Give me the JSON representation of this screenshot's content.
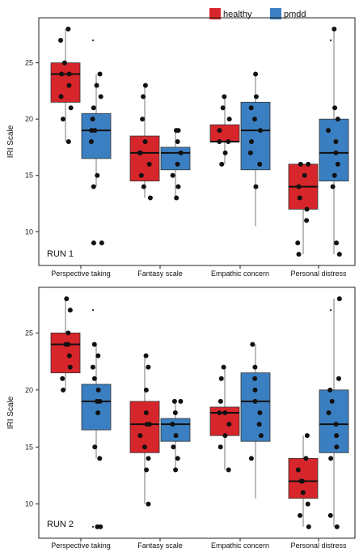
{
  "legend": {
    "items": [
      {
        "label": "healthy",
        "color": "#d7262b"
      },
      {
        "label": "pmdd",
        "color": "#3a7fc1"
      }
    ]
  },
  "chart_data": [
    {
      "type": "box",
      "panel_label": "RUN 1",
      "ylabel": "IRI Scale",
      "ylim": [
        7,
        29
      ],
      "yticks": [
        10,
        15,
        20,
        25
      ],
      "categories": [
        "Perspective taking",
        "Fantasy scale",
        "Empathic concern",
        "Personal distress"
      ],
      "series": [
        {
          "name": "healthy",
          "color": "#d7262b",
          "boxes": [
            {
              "q1": 21.5,
              "median": 24,
              "q3": 25,
              "whisker_low": 18,
              "whisker_high": 28,
              "outliers": [],
              "points": [
                28,
                27,
                25,
                24,
                24,
                23,
                22,
                21,
                20,
                18
              ]
            },
            {
              "q1": 14.5,
              "median": 17,
              "q3": 18.5,
              "whisker_low": 13,
              "whisker_high": 23,
              "outliers": [],
              "points": [
                23,
                22,
                20,
                18,
                17,
                17,
                16,
                15,
                14,
                13
              ]
            },
            {
              "q1": 18,
              "median": 18,
              "q3": 19.5,
              "whisker_low": 16,
              "whisker_high": 22,
              "outliers": [],
              "points": [
                22,
                21,
                20,
                19,
                18,
                18,
                17,
                16
              ]
            },
            {
              "q1": 12,
              "median": 14,
              "q3": 16,
              "whisker_low": 8,
              "whisker_high": 16,
              "outliers": [],
              "points": [
                16,
                16,
                15,
                14,
                13,
                12,
                11,
                9,
                8
              ]
            }
          ]
        },
        {
          "name": "pmdd",
          "color": "#3a7fc1",
          "boxes": [
            {
              "q1": 16.5,
              "median": 19,
              "q3": 20.5,
              "whisker_low": 14,
              "whisker_high": 24,
              "outliers": [
                27,
                9
              ],
              "points": [
                24,
                23,
                22,
                21,
                20,
                19,
                19,
                18,
                15,
                14,
                9,
                9
              ]
            },
            {
              "q1": 15.5,
              "median": 17,
              "q3": 17.5,
              "whisker_low": 13,
              "whisker_high": 19,
              "outliers": [],
              "points": [
                19,
                19,
                18,
                17,
                16,
                15,
                14,
                13
              ]
            },
            {
              "q1": 15.5,
              "median": 19,
              "q3": 21.5,
              "whisker_low": 10.5,
              "whisker_high": 24,
              "outliers": [],
              "points": [
                24,
                22,
                21,
                20,
                19,
                18,
                17,
                16,
                14
              ]
            },
            {
              "q1": 14.5,
              "median": 17,
              "q3": 20,
              "whisker_low": 8,
              "whisker_high": 28,
              "outliers": [
                27
              ],
              "points": [
                28,
                21,
                20,
                19,
                18,
                17,
                16,
                15,
                14,
                9,
                8
              ]
            }
          ]
        }
      ]
    },
    {
      "type": "box",
      "panel_label": "RUN 2",
      "ylabel": "IRI Scale",
      "ylim": [
        7,
        29
      ],
      "yticks": [
        10,
        15,
        20,
        25
      ],
      "categories": [
        "Perspective taking",
        "Fantasy scale",
        "Empathic concern",
        "Personal distress"
      ],
      "series": [
        {
          "name": "healthy",
          "color": "#d7262b",
          "boxes": [
            {
              "q1": 21.5,
              "median": 24,
              "q3": 25,
              "whisker_low": 20,
              "whisker_high": 28,
              "outliers": [],
              "points": [
                28,
                27,
                25,
                24,
                24,
                23,
                22,
                21,
                20
              ]
            },
            {
              "q1": 14.5,
              "median": 17,
              "q3": 19,
              "whisker_low": 10,
              "whisker_high": 23,
              "outliers": [],
              "points": [
                23,
                22,
                20,
                18,
                17,
                17,
                16,
                15,
                14,
                13,
                10
              ]
            },
            {
              "q1": 16,
              "median": 18,
              "q3": 18.5,
              "whisker_low": 13,
              "whisker_high": 22,
              "outliers": [],
              "points": [
                22,
                21,
                19,
                18,
                18,
                17,
                16,
                15,
                13
              ]
            },
            {
              "q1": 10.5,
              "median": 12,
              "q3": 14,
              "whisker_low": 8,
              "whisker_high": 16,
              "outliers": [],
              "points": [
                16,
                14,
                13,
                12,
                12,
                11,
                10,
                9,
                8
              ]
            }
          ]
        },
        {
          "name": "pmdd",
          "color": "#3a7fc1",
          "boxes": [
            {
              "q1": 16.5,
              "median": 19,
              "q3": 20.5,
              "whisker_low": 14,
              "whisker_high": 24,
              "outliers": [
                27,
                8
              ],
              "points": [
                24,
                23,
                22,
                21,
                20,
                19,
                19,
                18,
                15,
                14,
                8,
                8
              ]
            },
            {
              "q1": 15.5,
              "median": 17,
              "q3": 17.5,
              "whisker_low": 13,
              "whisker_high": 19,
              "outliers": [],
              "points": [
                19,
                19,
                18,
                17,
                16,
                15,
                14,
                13
              ]
            },
            {
              "q1": 15.5,
              "median": 19,
              "q3": 21.5,
              "whisker_low": 10.5,
              "whisker_high": 24,
              "outliers": [],
              "points": [
                24,
                22,
                21,
                20,
                19,
                18,
                17,
                16,
                14
              ]
            },
            {
              "q1": 14.5,
              "median": 17,
              "q3": 20,
              "whisker_low": 8,
              "whisker_high": 28,
              "outliers": [
                27
              ],
              "points": [
                28,
                21,
                20,
                19,
                18,
                17,
                16,
                15,
                14,
                9,
                8
              ]
            }
          ]
        }
      ]
    }
  ]
}
